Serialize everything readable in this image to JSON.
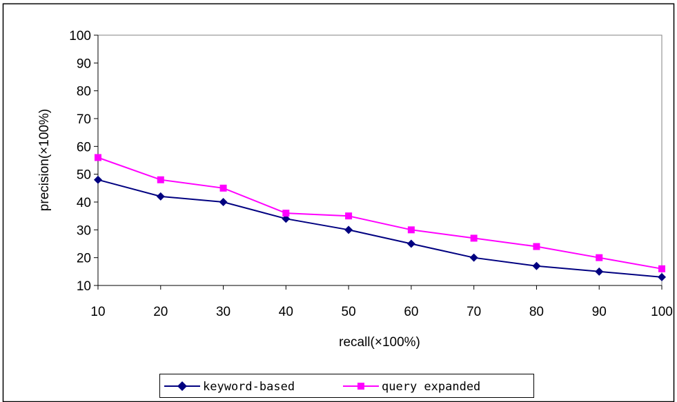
{
  "chart_data": {
    "type": "line",
    "x": [
      10,
      20,
      30,
      40,
      50,
      60,
      70,
      80,
      90,
      100
    ],
    "series": [
      {
        "name": "keyword-based",
        "values": [
          48,
          42,
          40,
          34,
          30,
          25,
          20,
          17,
          15,
          13
        ],
        "color": "#000080",
        "marker": "diamond"
      },
      {
        "name": "query expanded",
        "values": [
          56,
          48,
          45,
          36,
          35,
          30,
          27,
          24,
          20,
          16
        ],
        "color": "#FF00FF",
        "marker": "square"
      }
    ],
    "xlabel": "recall(×100%)",
    "ylabel": "precision(×100%)",
    "xlim": [
      10,
      100
    ],
    "ylim": [
      10,
      100
    ],
    "x_ticks": [
      "10",
      "20",
      "30",
      "40",
      "50",
      "60",
      "70",
      "80",
      "90",
      "100"
    ],
    "y_ticks": [
      "10",
      "20",
      "30",
      "40",
      "50",
      "60",
      "70",
      "80",
      "90",
      "100"
    ],
    "grid": false,
    "legend_position": "bottom"
  }
}
